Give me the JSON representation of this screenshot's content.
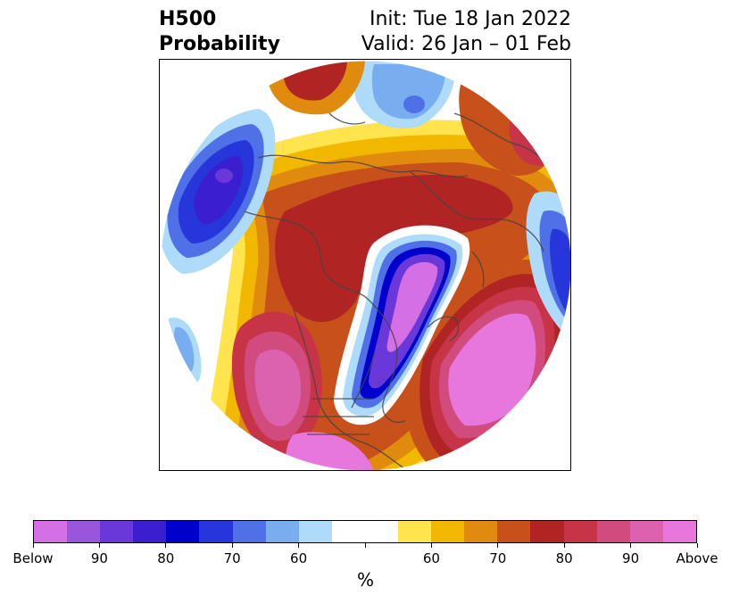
{
  "title": {
    "left_line1": "H500",
    "left_line2": "Probability",
    "right_line1": "Init: Tue 18 Jan 2022",
    "right_line2": "Valid: 26 Jan – 01 Feb"
  },
  "colorbar": {
    "unit": "%",
    "colors": [
      "#d56fe6",
      "#9a55dd",
      "#6a38d8",
      "#3b1ed0",
      "#0000cc",
      "#2636db",
      "#4f70e6",
      "#78aeef",
      "#aedbf9",
      "#ffffff",
      "#ffffff",
      "#ffe44d",
      "#f2b800",
      "#e08a0e",
      "#c8501a",
      "#b02424",
      "#c73448",
      "#d24b7e",
      "#dc62b0",
      "#e877dd"
    ],
    "tick_labels": [
      "Below",
      "90",
      "80",
      "70",
      "60",
      "",
      "60",
      "70",
      "80",
      "90",
      "Above"
    ]
  },
  "map": {
    "projection": "north-polar-stereographic",
    "variable": "500 hPa height anomaly probability"
  }
}
